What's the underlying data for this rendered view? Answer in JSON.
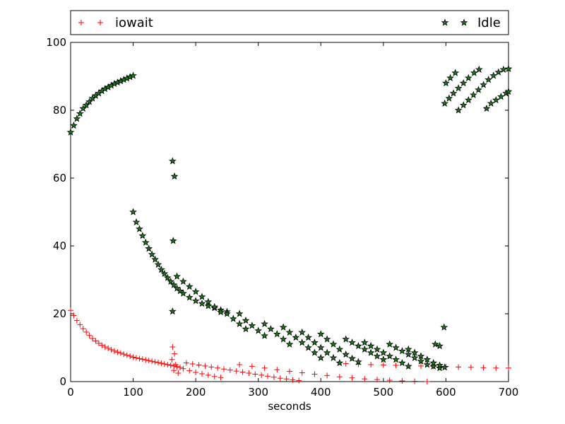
{
  "chart_data": {
    "type": "scatter",
    "title": "",
    "xlabel": "seconds",
    "ylabel": "",
    "xlim": [
      0,
      700
    ],
    "ylim": [
      0,
      100
    ],
    "xticks": [
      "0",
      "100",
      "200",
      "300",
      "400",
      "500",
      "600",
      "700"
    ],
    "yticks": [
      "0",
      "20",
      "40",
      "60",
      "80",
      "100"
    ],
    "grid": false,
    "legend_position": "top (above plot, expanded)",
    "series": [
      {
        "name": "iowait",
        "marker": "plus",
        "color": "#ff0000",
        "points": [
          [
            0,
            21
          ],
          [
            5,
            19.5
          ],
          [
            10,
            18
          ],
          [
            15,
            16.8
          ],
          [
            20,
            15.6
          ],
          [
            25,
            14.6
          ],
          [
            30,
            13.6
          ],
          [
            35,
            12.7
          ],
          [
            40,
            12
          ],
          [
            45,
            11.3
          ],
          [
            50,
            10.7
          ],
          [
            55,
            10.2
          ],
          [
            60,
            9.8
          ],
          [
            65,
            9.4
          ],
          [
            70,
            9.0
          ],
          [
            75,
            8.7
          ],
          [
            80,
            8.4
          ],
          [
            85,
            8.1
          ],
          [
            90,
            7.8
          ],
          [
            95,
            7.5
          ],
          [
            100,
            7.2
          ],
          [
            105,
            7.0
          ],
          [
            110,
            6.8
          ],
          [
            115,
            6.6
          ],
          [
            120,
            6.4
          ],
          [
            125,
            6.2
          ],
          [
            130,
            6.0
          ],
          [
            135,
            5.8
          ],
          [
            140,
            5.6
          ],
          [
            145,
            5.4
          ],
          [
            150,
            5.2
          ],
          [
            155,
            5.0
          ],
          [
            160,
            4.8
          ],
          [
            165,
            4.6
          ],
          [
            170,
            4.4
          ],
          [
            175,
            4.2
          ],
          [
            163,
            10.2
          ],
          [
            166,
            8.2
          ],
          [
            162,
            6.5
          ],
          [
            168,
            5.0
          ],
          [
            165,
            3.3
          ],
          [
            172,
            2.5
          ],
          [
            180,
            3.8
          ],
          [
            190,
            3.2
          ],
          [
            200,
            2.7
          ],
          [
            210,
            2.3
          ],
          [
            220,
            1.9
          ],
          [
            230,
            1.5
          ],
          [
            240,
            1.2
          ],
          [
            185,
            5.5
          ],
          [
            195,
            5.2
          ],
          [
            205,
            4.9
          ],
          [
            215,
            4.6
          ],
          [
            225,
            4.3
          ],
          [
            235,
            4.0
          ],
          [
            245,
            3.7
          ],
          [
            255,
            3.4
          ],
          [
            265,
            3.1
          ],
          [
            275,
            2.8
          ],
          [
            285,
            2.5
          ],
          [
            295,
            2.2
          ],
          [
            305,
            1.9
          ],
          [
            315,
            1.6
          ],
          [
            325,
            1.3
          ],
          [
            335,
            1.0
          ],
          [
            345,
            0.8
          ],
          [
            355,
            0.5
          ],
          [
            365,
            0.3
          ],
          [
            270,
            5.0
          ],
          [
            290,
            4.5
          ],
          [
            310,
            4.0
          ],
          [
            330,
            3.5
          ],
          [
            350,
            3.0
          ],
          [
            370,
            2.6
          ],
          [
            390,
            2.2
          ],
          [
            410,
            1.8
          ],
          [
            430,
            1.4
          ],
          [
            450,
            1.1
          ],
          [
            470,
            0.8
          ],
          [
            490,
            0.6
          ],
          [
            510,
            0.4
          ],
          [
            530,
            0.2
          ],
          [
            550,
            0.1
          ],
          [
            570,
            0.0
          ],
          [
            440,
            5.3
          ],
          [
            460,
            5.1
          ],
          [
            480,
            5.0
          ],
          [
            500,
            4.9
          ],
          [
            520,
            4.8
          ],
          [
            540,
            4.7
          ],
          [
            560,
            4.6
          ],
          [
            580,
            4.5
          ],
          [
            600,
            4.4
          ],
          [
            620,
            4.3
          ],
          [
            640,
            4.2
          ],
          [
            660,
            4.1
          ],
          [
            680,
            4.0
          ],
          [
            700,
            4.0
          ]
        ]
      },
      {
        "name": "Idle",
        "marker": "star",
        "color": "#1a7a1a",
        "points": [
          [
            0,
            73.5
          ],
          [
            5,
            75.5
          ],
          [
            10,
            77.5
          ],
          [
            15,
            79
          ],
          [
            20,
            80.5
          ],
          [
            25,
            81.5
          ],
          [
            30,
            82.5
          ],
          [
            35,
            83.5
          ],
          [
            40,
            84.3
          ],
          [
            45,
            85
          ],
          [
            50,
            85.7
          ],
          [
            55,
            86.3
          ],
          [
            60,
            86.8
          ],
          [
            65,
            87.3
          ],
          [
            70,
            87.8
          ],
          [
            75,
            88.2
          ],
          [
            80,
            88.6
          ],
          [
            85,
            89
          ],
          [
            90,
            89.4
          ],
          [
            95,
            89.8
          ],
          [
            100,
            90.2
          ],
          [
            100,
            50
          ],
          [
            105,
            47
          ],
          [
            110,
            45
          ],
          [
            115,
            43
          ],
          [
            120,
            41
          ],
          [
            125,
            39.2
          ],
          [
            130,
            37.5
          ],
          [
            135,
            36
          ],
          [
            140,
            34.5
          ],
          [
            145,
            33
          ],
          [
            150,
            31.8
          ],
          [
            155,
            30.6
          ],
          [
            160,
            29.5
          ],
          [
            165,
            28.5
          ],
          [
            170,
            27.5
          ],
          [
            175,
            26.7
          ],
          [
            180,
            26
          ],
          [
            190,
            24.8
          ],
          [
            200,
            23.8
          ],
          [
            210,
            23
          ],
          [
            220,
            22.3
          ],
          [
            230,
            21.7
          ],
          [
            240,
            21.1
          ],
          [
            250,
            20.6
          ],
          [
            163,
            65
          ],
          [
            166,
            60.5
          ],
          [
            164,
            41.5
          ],
          [
            163,
            20.7
          ],
          [
            170,
            31
          ],
          [
            180,
            29.5
          ],
          [
            190,
            28
          ],
          [
            200,
            26.5
          ],
          [
            210,
            25
          ],
          [
            220,
            23.5
          ],
          [
            230,
            22
          ],
          [
            240,
            20.5
          ],
          [
            250,
            20
          ],
          [
            260,
            18.5
          ],
          [
            270,
            17
          ],
          [
            280,
            15.5
          ],
          [
            270,
            20
          ],
          [
            280,
            18
          ],
          [
            290,
            16.5
          ],
          [
            300,
            15
          ],
          [
            310,
            13.5
          ],
          [
            310,
            17
          ],
          [
            320,
            15.5
          ],
          [
            330,
            14
          ],
          [
            340,
            12.5
          ],
          [
            350,
            11
          ],
          [
            340,
            16
          ],
          [
            350,
            14.5
          ],
          [
            360,
            13
          ],
          [
            370,
            11.5
          ],
          [
            380,
            10
          ],
          [
            390,
            8.5
          ],
          [
            400,
            7
          ],
          [
            370,
            14.5
          ],
          [
            380,
            13
          ],
          [
            390,
            11.5
          ],
          [
            400,
            10
          ],
          [
            410,
            8.5
          ],
          [
            420,
            7
          ],
          [
            430,
            5.5
          ],
          [
            400,
            14
          ],
          [
            410,
            12.5
          ],
          [
            420,
            11
          ],
          [
            430,
            9.5
          ],
          [
            440,
            8
          ],
          [
            450,
            6.8
          ],
          [
            460,
            5.8
          ],
          [
            440,
            12.5
          ],
          [
            450,
            11.5
          ],
          [
            460,
            10.5
          ],
          [
            470,
            9.5
          ],
          [
            480,
            8.5
          ],
          [
            490,
            7.5
          ],
          [
            500,
            6.5
          ],
          [
            470,
            11.5
          ],
          [
            480,
            10.5
          ],
          [
            490,
            9.5
          ],
          [
            500,
            8.5
          ],
          [
            510,
            7.5
          ],
          [
            520,
            6.5
          ],
          [
            530,
            5.5
          ],
          [
            540,
            4.5
          ],
          [
            510,
            11
          ],
          [
            520,
            10
          ],
          [
            530,
            9
          ],
          [
            540,
            8
          ],
          [
            550,
            7
          ],
          [
            560,
            6
          ],
          [
            570,
            5
          ],
          [
            580,
            4.5
          ],
          [
            590,
            4
          ],
          [
            540,
            9.5
          ],
          [
            550,
            8.5
          ],
          [
            560,
            7.5
          ],
          [
            570,
            6.5
          ],
          [
            580,
            5.5
          ],
          [
            590,
            4.8
          ],
          [
            598,
            4.2
          ],
          [
            583,
            11
          ],
          [
            590,
            10.5
          ],
          [
            597,
            16
          ],
          [
            598,
            82
          ],
          [
            605,
            83.5
          ],
          [
            612,
            85
          ],
          [
            620,
            86.5
          ],
          [
            628,
            88
          ],
          [
            636,
            89.5
          ],
          [
            645,
            91
          ],
          [
            653,
            92
          ],
          [
            600,
            88
          ],
          [
            607,
            89.5
          ],
          [
            615,
            91
          ],
          [
            620,
            80
          ],
          [
            628,
            81.5
          ],
          [
            636,
            83
          ],
          [
            644,
            84.5
          ],
          [
            652,
            86
          ],
          [
            660,
            87.5
          ],
          [
            668,
            89
          ],
          [
            676,
            90.2
          ],
          [
            684,
            91.2
          ],
          [
            692,
            92
          ],
          [
            700,
            92.2
          ],
          [
            665,
            80.5
          ],
          [
            672,
            82
          ],
          [
            680,
            83
          ],
          [
            688,
            84
          ],
          [
            696,
            85
          ],
          [
            700,
            85.5
          ]
        ]
      }
    ]
  }
}
